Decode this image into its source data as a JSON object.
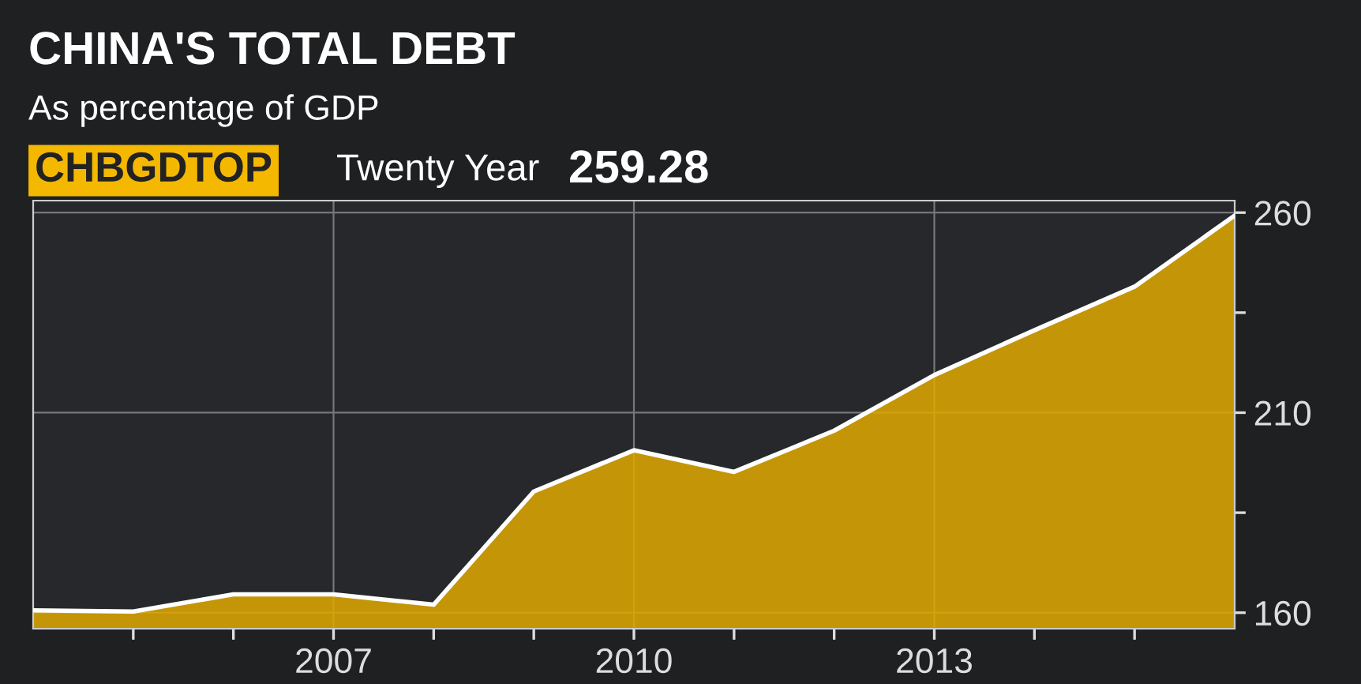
{
  "chart_data": {
    "type": "area",
    "title": "CHINA'S TOTAL DEBT",
    "subtitle": "As percentage of GDP",
    "annotations": [
      "CHBGDTOP",
      "Twenty Year",
      "259.28"
    ],
    "x": [
      2004,
      2005,
      2006,
      2007,
      2008,
      2009,
      2010,
      2011,
      2012,
      2013,
      2014,
      2015,
      2016
    ],
    "series": [
      {
        "color": "#e0a800",
        "values": [
          160.6,
          160.3,
          164.6,
          164.6,
          162,
          190.3,
          200.6,
          195.2,
          205.5,
          219.4,
          230.6,
          241.5,
          259.28
        ]
      }
    ],
    "xlim": [
      2004,
      2016
    ],
    "xticks": [
      {
        "value": 2005,
        "label": null
      },
      {
        "value": 2006,
        "label": null
      },
      2007,
      {
        "value": 2008,
        "label": null
      },
      {
        "value": 2009,
        "label": null
      },
      2010,
      {
        "value": 2011,
        "label": null
      },
      {
        "value": 2012,
        "label": null
      },
      2013,
      {
        "value": 2014,
        "label": null
      },
      {
        "value": 2015,
        "label": null
      }
    ],
    "ylim": [
      156,
      263
    ],
    "yticks": [
      160,
      {
        "value": 185,
        "label": null
      },
      210,
      {
        "value": 235,
        "label": null
      },
      260
    ],
    "grid": true,
    "legend": false,
    "line_style": "solid",
    "marker": "none"
  }
}
